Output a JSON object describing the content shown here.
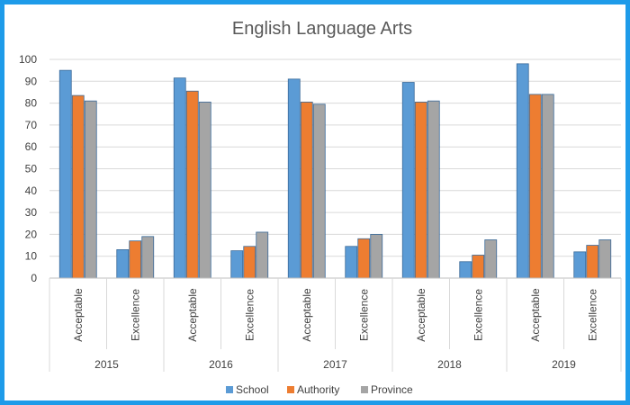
{
  "chart_data": {
    "type": "bar",
    "title": "English Language Arts",
    "xlabel": "",
    "ylabel": "",
    "ylim": [
      0,
      100
    ],
    "yticks": [
      0,
      10,
      20,
      30,
      40,
      50,
      60,
      70,
      80,
      90,
      100
    ],
    "grid": true,
    "legend_position": "bottom",
    "groups": [
      "2015",
      "2016",
      "2017",
      "2018",
      "2019"
    ],
    "subcategories": [
      "Acceptable",
      "Excellence"
    ],
    "series": [
      {
        "name": "School",
        "color": "#5b9bd5",
        "values": [
          95,
          13,
          91.5,
          12.5,
          91,
          14.5,
          89.5,
          7.5,
          98,
          12
        ]
      },
      {
        "name": "Authority",
        "color": "#ed7d31",
        "values": [
          83.5,
          17,
          85.5,
          14.5,
          80.5,
          18,
          80.5,
          10.5,
          84,
          15
        ]
      },
      {
        "name": "Province",
        "color": "#a5a5a5",
        "values": [
          81,
          19,
          80.5,
          21,
          79.5,
          20,
          81,
          17.5,
          84,
          17.5
        ]
      }
    ]
  }
}
